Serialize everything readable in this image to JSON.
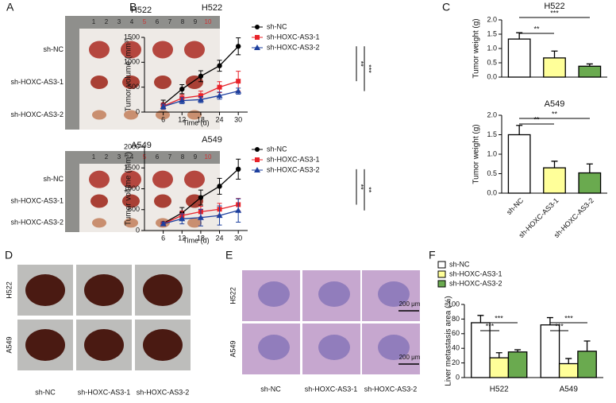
{
  "chart_data": [
    {
      "type": "line",
      "title": "H522",
      "xlabel": "Time (d)",
      "ylabel": "Tumor volume (mm³)",
      "x": [
        6,
        12,
        18,
        24,
        30
      ],
      "xlim": [
        0,
        33
      ],
      "xticks": [
        6,
        12,
        18,
        24,
        30
      ],
      "ylim": [
        0,
        1500
      ],
      "yticks": [
        0,
        500,
        1000,
        1500
      ],
      "series": [
        {
          "name": "sh-NC",
          "color": "#000000",
          "marker": "circle",
          "values": [
            150,
            460,
            720,
            930,
            1320
          ],
          "errors": [
            90,
            90,
            110,
            110,
            170
          ]
        },
        {
          "name": "sh-HOXC-AS3-1",
          "color": "#e8232a",
          "marker": "square",
          "values": [
            120,
            280,
            330,
            500,
            620
          ],
          "errors": [
            60,
            70,
            90,
            110,
            200
          ]
        },
        {
          "name": "sh-HOXC-AS3-2",
          "color": "#1c3f9e",
          "marker": "triangle",
          "values": [
            110,
            230,
            250,
            330,
            420
          ],
          "errors": [
            50,
            60,
            60,
            70,
            60
          ]
        }
      ],
      "annotations": [
        "**",
        "***"
      ]
    },
    {
      "type": "line",
      "title": "A549",
      "xlabel": "Time (d)",
      "ylabel": "Tumor volume (mm³)",
      "x": [
        6,
        12,
        18,
        24,
        30
      ],
      "xlim": [
        0,
        33
      ],
      "xticks": [
        6,
        12,
        18,
        24,
        30
      ],
      "ylim": [
        0,
        2000
      ],
      "yticks": [
        0,
        500,
        1000,
        1500,
        2000
      ],
      "series": [
        {
          "name": "sh-NC",
          "color": "#000000",
          "marker": "circle",
          "values": [
            170,
            420,
            790,
            1060,
            1470
          ],
          "errors": [
            40,
            130,
            180,
            190,
            240
          ]
        },
        {
          "name": "sh-HOXC-AS3-1",
          "color": "#e8232a",
          "marker": "square",
          "values": [
            160,
            360,
            450,
            510,
            620
          ],
          "errors": [
            40,
            110,
            130,
            140,
            150
          ]
        },
        {
          "name": "sh-HOXC-AS3-2",
          "color": "#1c3f9e",
          "marker": "triangle",
          "values": [
            160,
            280,
            310,
            360,
            480
          ],
          "errors": [
            40,
            120,
            200,
            230,
            280
          ]
        }
      ],
      "annotations": [
        "**",
        "**"
      ]
    },
    {
      "type": "bar",
      "title": "H522",
      "ylabel": "Tumor weight (g)",
      "categories": [
        null,
        null,
        null
      ],
      "values": [
        1.33,
        0.67,
        0.38
      ],
      "errors": [
        0.22,
        0.24,
        0.08
      ],
      "colors": [
        "#ffffff",
        "#ffff99",
        "#6aaa4f"
      ],
      "ylim": [
        0,
        2
      ],
      "yticks": [
        {
          "value": 0,
          "label": "0.0"
        },
        {
          "value": 0.5,
          "label": "0.5"
        },
        {
          "value": 1,
          "label": "1.0"
        },
        {
          "value": 1.5,
          "label": "1.5"
        },
        {
          "value": 2,
          "label": "2.0"
        }
      ],
      "annotations": [
        "**",
        "***"
      ]
    },
    {
      "type": "bar",
      "title": "A549",
      "ylabel": "Tumor weight (g)",
      "categories": [
        "sh-NC",
        "sh-HOXC-AS3-1",
        "sh-HOXC-AS3-2"
      ],
      "values": [
        1.5,
        0.65,
        0.52
      ],
      "errors": [
        0.24,
        0.17,
        0.23
      ],
      "colors": [
        "#ffffff",
        "#ffff99",
        "#6aaa4f"
      ],
      "ylim": [
        0,
        2
      ],
      "yticks": [
        {
          "value": 0,
          "label": "0.0"
        },
        {
          "value": 0.5,
          "label": "0.5"
        },
        {
          "value": 1,
          "label": "1.0"
        },
        {
          "value": 1.5,
          "label": "1.5"
        },
        {
          "value": 2,
          "label": "2.0"
        }
      ],
      "annotations": [
        "**",
        "**"
      ]
    },
    {
      "type": "bar",
      "ylabel": "Liver metastasis area (%)",
      "categories": [
        "H522",
        "A549"
      ],
      "ylim": [
        0,
        100
      ],
      "yticks": [
        0,
        20,
        40,
        60,
        80,
        100
      ],
      "legend": "top-left",
      "series": [
        {
          "name": "sh-NC",
          "color": "#ffffff",
          "values": [
            75,
            72
          ],
          "errors": [
            10,
            10
          ]
        },
        {
          "name": "sh-HOXC-AS3-1",
          "color": "#ffff99",
          "values": [
            27,
            19
          ],
          "errors": [
            7,
            7
          ]
        },
        {
          "name": "sh-HOXC-AS3-2",
          "color": "#6aaa4f",
          "values": [
            35,
            36
          ],
          "errors": [
            3,
            14
          ]
        }
      ],
      "annotations": [
        "***",
        "***",
        "***",
        "***"
      ]
    }
  ],
  "panels": {
    "A": {
      "label": "A",
      "ruler": [
        "1",
        "2",
        "3",
        "4",
        "5",
        "6",
        "7",
        "8",
        "9",
        "10"
      ],
      "groups": [
        {
          "title": "H522",
          "rows": [
            "sh-NC",
            "sh-HOXC-AS3-1",
            "sh-HOXC-AS3-2"
          ]
        },
        {
          "title": "A549",
          "rows": [
            "sh-NC",
            "sh-HOXC-AS3-1",
            "sh-HOXC-AS3-2"
          ]
        }
      ]
    },
    "B": {
      "label": "B"
    },
    "C": {
      "label": "C"
    },
    "D": {
      "label": "D",
      "rows": [
        "H522",
        "A549"
      ],
      "columns": [
        "sh-NC",
        "sh-HOXC-AS3-1",
        "sh-HOXC-AS3-2"
      ]
    },
    "E": {
      "label": "E",
      "rows": [
        "H522",
        "A549"
      ],
      "columns": [
        "sh-NC",
        "sh-HOXC-AS3-1",
        "sh-HOXC-AS3-2"
      ],
      "scale": "200 μm"
    },
    "F": {
      "label": "F"
    }
  }
}
